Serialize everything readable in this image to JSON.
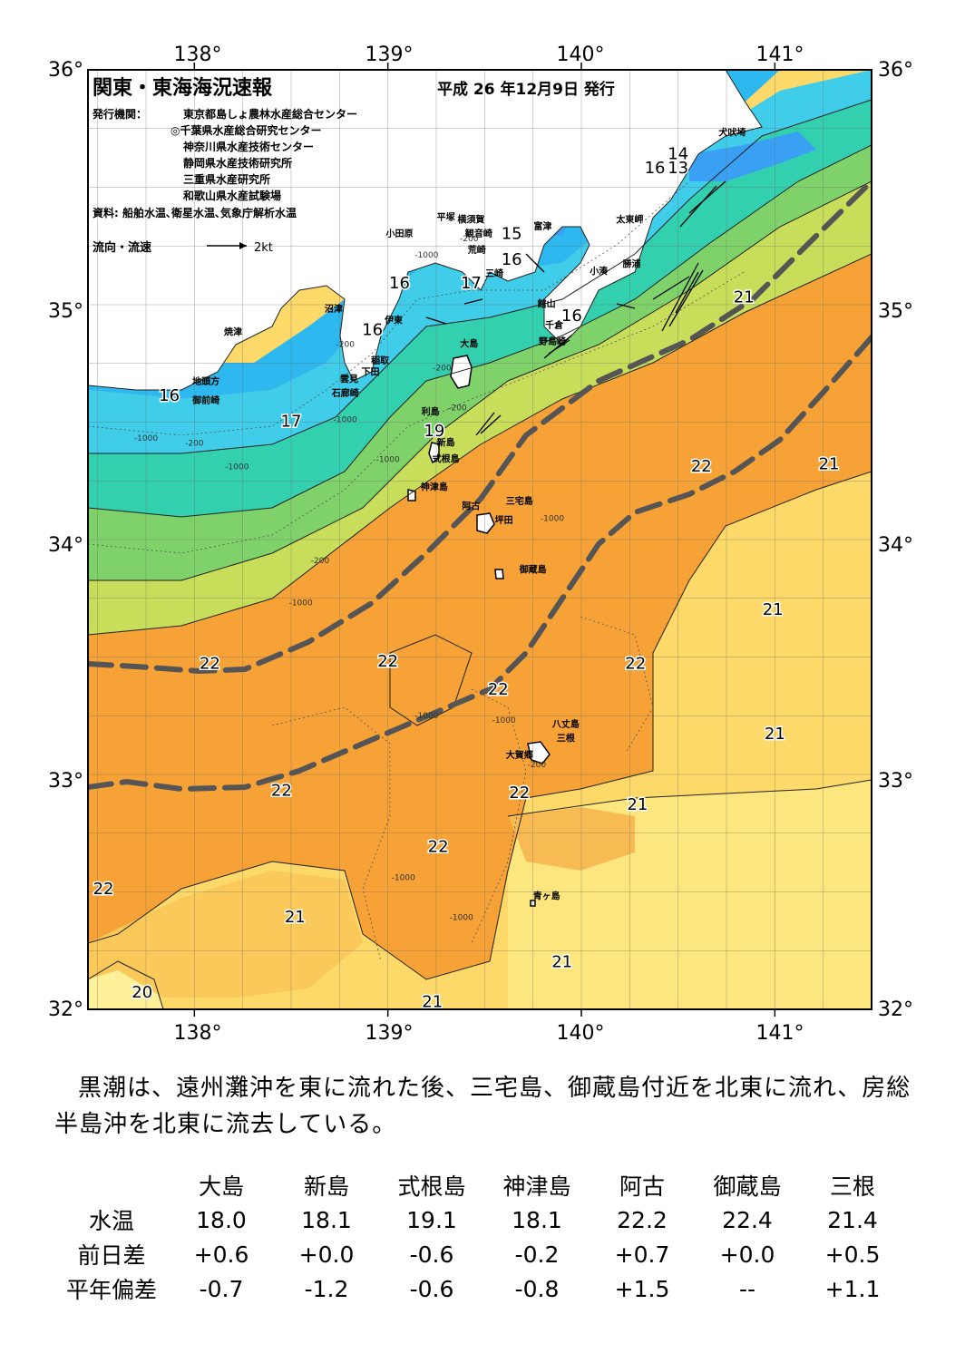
{
  "header": {
    "title": "関東・東海海況速報",
    "issue_date": "平成 26 年12月9日 発行",
    "publisher_label": "発行機関：",
    "publishers": [
      "東京都島しょ農林水産総合センター",
      "◎千葉県水産総合研究センター",
      "神奈川県水産技術センター",
      "静岡県水産技術研究所",
      "三重県水産研究所",
      "和歌山県水産試験場"
    ],
    "sources": "資料: 船舶水温､衛星水温､気象庁解析水温",
    "legend_label": "流向・流速",
    "legend_speed": "2kt"
  },
  "axes": {
    "lon_labels": [
      "138°",
      "139°",
      "140°",
      "141°"
    ],
    "lat_labels": [
      "36°",
      "35°",
      "34°",
      "33°",
      "32°"
    ]
  },
  "places": [
    {
      "name": "犬吠埼",
      "lon": 140.78,
      "lat": 35.72
    },
    {
      "name": "太東岬",
      "lon": 140.25,
      "lat": 35.35
    },
    {
      "name": "勝浦",
      "lon": 140.26,
      "lat": 35.16
    },
    {
      "name": "小湊",
      "lon": 140.09,
      "lat": 35.13
    },
    {
      "name": "富津",
      "lon": 139.8,
      "lat": 35.32
    },
    {
      "name": "横須賀",
      "lon": 139.43,
      "lat": 35.35
    },
    {
      "name": "観音崎",
      "lon": 139.47,
      "lat": 35.29
    },
    {
      "name": "荒崎",
      "lon": 139.46,
      "lat": 35.22
    },
    {
      "name": "三崎",
      "lon": 139.55,
      "lat": 35.12
    },
    {
      "name": "平塚",
      "lon": 139.3,
      "lat": 35.36
    },
    {
      "name": "小田原",
      "lon": 139.06,
      "lat": 35.29
    },
    {
      "name": "館山",
      "lon": 139.82,
      "lat": 34.99
    },
    {
      "name": "千倉",
      "lon": 139.86,
      "lat": 34.9
    },
    {
      "name": "野島崎",
      "lon": 139.85,
      "lat": 34.83
    },
    {
      "name": "沼津",
      "lon": 138.72,
      "lat": 34.97
    },
    {
      "name": "伊東",
      "lon": 139.03,
      "lat": 34.92
    },
    {
      "name": "稲取",
      "lon": 138.96,
      "lat": 34.75
    },
    {
      "name": "下田",
      "lon": 138.91,
      "lat": 34.7
    },
    {
      "name": "雲見",
      "lon": 138.8,
      "lat": 34.67
    },
    {
      "name": "石廊崎",
      "lon": 138.78,
      "lat": 34.61
    },
    {
      "name": "焼津",
      "lon": 138.2,
      "lat": 34.87
    },
    {
      "name": "地頭方",
      "lon": 138.06,
      "lat": 34.66
    },
    {
      "name": "御前崎",
      "lon": 138.06,
      "lat": 34.58
    },
    {
      "name": "大島",
      "lon": 139.42,
      "lat": 34.82
    },
    {
      "name": "利島",
      "lon": 139.22,
      "lat": 34.53
    },
    {
      "name": "新島",
      "lon": 139.3,
      "lat": 34.4
    },
    {
      "name": "式根島",
      "lon": 139.3,
      "lat": 34.33
    },
    {
      "name": "神津島",
      "lon": 139.24,
      "lat": 34.21
    },
    {
      "name": "阿古",
      "lon": 139.43,
      "lat": 34.13
    },
    {
      "name": "三宅島",
      "lon": 139.68,
      "lat": 34.15
    },
    {
      "name": "坪田",
      "lon": 139.6,
      "lat": 34.07
    },
    {
      "name": "御蔵島",
      "lon": 139.75,
      "lat": 33.86
    },
    {
      "name": "八丈島",
      "lon": 139.92,
      "lat": 33.2
    },
    {
      "name": "三根",
      "lon": 139.92,
      "lat": 33.14
    },
    {
      "name": "大賀郷",
      "lon": 139.68,
      "lat": 33.07
    },
    {
      "name": "青ヶ島",
      "lon": 139.82,
      "lat": 32.47
    }
  ],
  "temp_labels": [
    {
      "t": "14",
      "lon": 140.5,
      "lat": 35.62
    },
    {
      "t": "16",
      "lon": 140.38,
      "lat": 35.56
    },
    {
      "t": "13",
      "lon": 140.5,
      "lat": 35.56
    },
    {
      "t": "15",
      "lon": 139.64,
      "lat": 35.28
    },
    {
      "t": "16",
      "lon": 139.64,
      "lat": 35.17
    },
    {
      "t": "17",
      "lon": 139.43,
      "lat": 35.07
    },
    {
      "t": "16",
      "lon": 139.06,
      "lat": 35.07
    },
    {
      "t": "16",
      "lon": 139.95,
      "lat": 34.93
    },
    {
      "t": "16",
      "lon": 138.92,
      "lat": 34.87
    },
    {
      "t": "16",
      "lon": 137.87,
      "lat": 34.59
    },
    {
      "t": "17",
      "lon": 138.5,
      "lat": 34.48
    },
    {
      "t": "19",
      "lon": 139.24,
      "lat": 34.44
    },
    {
      "t": "21",
      "lon": 140.84,
      "lat": 35.01
    },
    {
      "t": "22",
      "lon": 140.62,
      "lat": 34.29
    },
    {
      "t": "21",
      "lon": 141.28,
      "lat": 34.3
    },
    {
      "t": "21",
      "lon": 140.99,
      "lat": 33.68
    },
    {
      "t": "22",
      "lon": 138.08,
      "lat": 33.45
    },
    {
      "t": "22",
      "lon": 139.0,
      "lat": 33.46
    },
    {
      "t": "22",
      "lon": 140.28,
      "lat": 33.45
    },
    {
      "t": "22",
      "lon": 139.57,
      "lat": 33.34
    },
    {
      "t": "21",
      "lon": 141.0,
      "lat": 33.15
    },
    {
      "t": "22",
      "lon": 138.45,
      "lat": 32.91
    },
    {
      "t": "22",
      "lon": 139.68,
      "lat": 32.9
    },
    {
      "t": "21",
      "lon": 140.29,
      "lat": 32.85
    },
    {
      "t": "22",
      "lon": 139.26,
      "lat": 32.67
    },
    {
      "t": "22",
      "lon": 137.53,
      "lat": 32.49
    },
    {
      "t": "21",
      "lon": 138.52,
      "lat": 32.37
    },
    {
      "t": "21",
      "lon": 139.9,
      "lat": 32.18
    },
    {
      "t": "20",
      "lon": 137.73,
      "lat": 32.05
    },
    {
      "t": "21",
      "lon": 139.23,
      "lat": 32.01
    }
  ],
  "depth_labels": [
    {
      "t": "-200",
      "lon": 139.42,
      "lat": 35.27
    },
    {
      "t": "-1000",
      "lon": 139.2,
      "lat": 35.2
    },
    {
      "t": "-200",
      "lon": 138.78,
      "lat": 34.82
    },
    {
      "t": "-200",
      "lon": 139.28,
      "lat": 34.72
    },
    {
      "t": "-200",
      "lon": 139.36,
      "lat": 34.55
    },
    {
      "t": "-1000",
      "lon": 138.78,
      "lat": 34.5
    },
    {
      "t": "-200",
      "lon": 138.0,
      "lat": 34.4
    },
    {
      "t": "-1000",
      "lon": 137.75,
      "lat": 34.42
    },
    {
      "t": "-1000",
      "lon": 138.22,
      "lat": 34.3
    },
    {
      "t": "-1000",
      "lon": 139.0,
      "lat": 34.33
    },
    {
      "t": "-1000",
      "lon": 139.85,
      "lat": 34.08
    },
    {
      "t": "-200",
      "lon": 138.65,
      "lat": 33.9
    },
    {
      "t": "-1000",
      "lon": 138.55,
      "lat": 33.72
    },
    {
      "t": "-1000",
      "lon": 139.2,
      "lat": 33.24
    },
    {
      "t": "-1000",
      "lon": 139.6,
      "lat": 33.22
    },
    {
      "t": "-200",
      "lon": 139.77,
      "lat": 33.03
    },
    {
      "t": "-1000",
      "lon": 139.08,
      "lat": 32.55
    },
    {
      "t": "-1000",
      "lon": 139.38,
      "lat": 32.38
    }
  ],
  "summary": "黒潮は、遠州灘沖を東に流れた後、三宅島、御蔵島付近を北東に流れ、房総半島沖を北東に流去している。",
  "table": {
    "stations": [
      "大島",
      "新島",
      "式根島",
      "神津島",
      "阿古",
      "御蔵島",
      "三根"
    ],
    "rows": [
      {
        "label": "水温",
        "values": [
          "18.0",
          "18.1",
          "19.1",
          "18.1",
          "22.2",
          "22.4",
          "21.4"
        ]
      },
      {
        "label": "前日差",
        "values": [
          "+0.6",
          "+0.0",
          "-0.6",
          "-0.2",
          "+0.7",
          "+0.0",
          "+0.5"
        ]
      },
      {
        "label": "平年偏差",
        "values": [
          "-0.7",
          "-1.2",
          "-0.6",
          "-0.8",
          "+1.5",
          "--",
          "+1.1"
        ]
      }
    ]
  }
}
